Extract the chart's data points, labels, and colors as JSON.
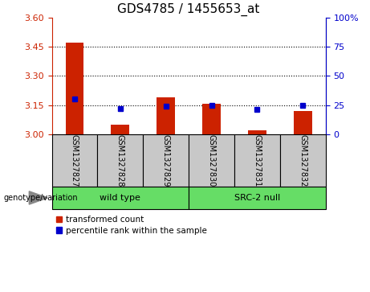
{
  "title": "GDS4785 / 1455653_at",
  "samples": [
    "GSM1327827",
    "GSM1327828",
    "GSM1327829",
    "GSM1327830",
    "GSM1327831",
    "GSM1327832"
  ],
  "red_values": [
    3.47,
    3.05,
    3.19,
    3.155,
    3.02,
    3.12
  ],
  "blue_values": [
    30,
    22,
    24,
    25,
    21,
    25
  ],
  "ylim_left": [
    3.0,
    3.6
  ],
  "ylim_right": [
    0,
    100
  ],
  "yticks_left": [
    3.0,
    3.15,
    3.3,
    3.45,
    3.6
  ],
  "yticks_right": [
    0,
    25,
    50,
    75,
    100
  ],
  "bar_color": "#CC2200",
  "dot_color": "#0000CC",
  "bar_width": 0.4,
  "baseline": 3.0,
  "bg_sample": "#C8C8C8",
  "bg_wt": "#66DD66",
  "bg_src": "#66DD66",
  "title_fontsize": 11,
  "tick_fontsize": 8,
  "sample_fontsize": 7,
  "geno_fontsize": 8,
  "legend_fontsize": 7.5,
  "legend_label_red": "transformed count",
  "legend_label_blue": "percentile rank within the sample"
}
